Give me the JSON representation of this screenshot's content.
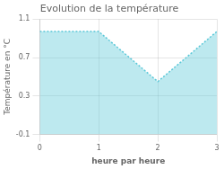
{
  "chart_data": {
    "type": "area",
    "title": "Evolution de la température",
    "xlabel": "heure par heure",
    "ylabel": "Température en °C",
    "x": [
      0,
      1,
      2,
      3
    ],
    "values": [
      0.97,
      0.97,
      0.45,
      0.97
    ],
    "color": "#5bc8d8",
    "line_style": "dotted",
    "xlim": [
      0,
      3
    ],
    "ylim": [
      -0.1,
      1.1
    ],
    "xticks": [
      0,
      1,
      2,
      3
    ],
    "yticks": [
      -0.1,
      0.3,
      0.7,
      1.1
    ],
    "grid": true
  }
}
